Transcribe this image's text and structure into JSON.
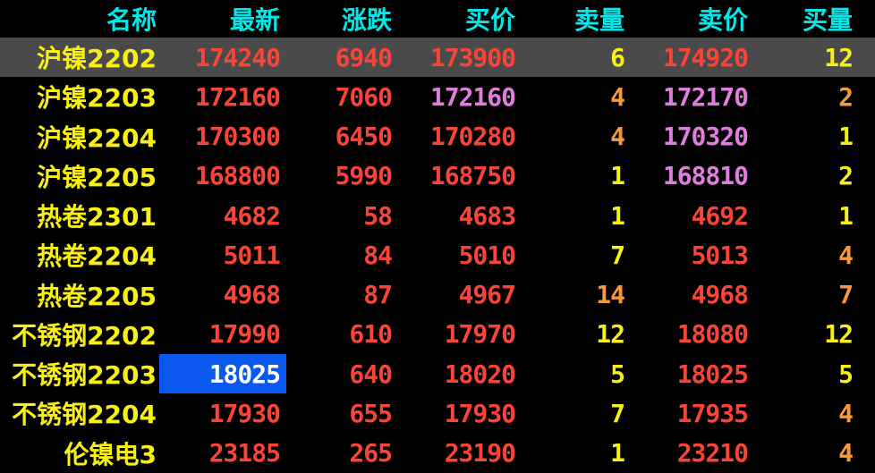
{
  "palette": {
    "cyan": "#00E9E9",
    "yellow": "#F8EF14",
    "orange": "#F79A3E",
    "red": "#F94438",
    "purple": "#DF7EDF",
    "white": "#FFFFFF",
    "background": "#000000",
    "selected_row_bg": "#4A4A4A",
    "highlight_cell_bg": "#0A58EE"
  },
  "table": {
    "columns": [
      {
        "key": "name",
        "label": "名称"
      },
      {
        "key": "last",
        "label": "最新"
      },
      {
        "key": "change",
        "label": "涨跌"
      },
      {
        "key": "bid",
        "label": "买价"
      },
      {
        "key": "ask_vol",
        "label": "卖量"
      },
      {
        "key": "ask",
        "label": "卖价"
      },
      {
        "key": "bid_vol",
        "label": "买量"
      }
    ],
    "rows": [
      {
        "name": "沪镍2202",
        "last": "174240",
        "change": "6940",
        "bid": "173900",
        "ask_vol": "6",
        "ask": "174920",
        "bid_vol": "12",
        "selected": true,
        "highlight_cell": "",
        "colors": {
          "name": "yellow",
          "last": "red",
          "change": "red",
          "bid": "red",
          "ask_vol": "yellow",
          "ask": "red",
          "bid_vol": "yellow"
        }
      },
      {
        "name": "沪镍2203",
        "last": "172160",
        "change": "7060",
        "bid": "172160",
        "ask_vol": "4",
        "ask": "172170",
        "bid_vol": "2",
        "selected": false,
        "highlight_cell": "",
        "colors": {
          "name": "yellow",
          "last": "red",
          "change": "red",
          "bid": "purple",
          "ask_vol": "orange",
          "ask": "purple",
          "bid_vol": "orange"
        }
      },
      {
        "name": "沪镍2204",
        "last": "170300",
        "change": "6450",
        "bid": "170280",
        "ask_vol": "4",
        "ask": "170320",
        "bid_vol": "1",
        "selected": false,
        "highlight_cell": "",
        "colors": {
          "name": "yellow",
          "last": "red",
          "change": "red",
          "bid": "red",
          "ask_vol": "orange",
          "ask": "purple",
          "bid_vol": "yellow"
        }
      },
      {
        "name": "沪镍2205",
        "last": "168800",
        "change": "5990",
        "bid": "168750",
        "ask_vol": "1",
        "ask": "168810",
        "bid_vol": "2",
        "selected": false,
        "highlight_cell": "",
        "colors": {
          "name": "yellow",
          "last": "red",
          "change": "red",
          "bid": "red",
          "ask_vol": "yellow",
          "ask": "purple",
          "bid_vol": "yellow"
        }
      },
      {
        "name": "热卷2301",
        "last": "4682",
        "change": "58",
        "bid": "4683",
        "ask_vol": "1",
        "ask": "4692",
        "bid_vol": "1",
        "selected": false,
        "highlight_cell": "",
        "colors": {
          "name": "yellow",
          "last": "red",
          "change": "red",
          "bid": "red",
          "ask_vol": "yellow",
          "ask": "red",
          "bid_vol": "yellow"
        }
      },
      {
        "name": "热卷2204",
        "last": "5011",
        "change": "84",
        "bid": "5010",
        "ask_vol": "7",
        "ask": "5013",
        "bid_vol": "4",
        "selected": false,
        "highlight_cell": "",
        "colors": {
          "name": "yellow",
          "last": "red",
          "change": "red",
          "bid": "red",
          "ask_vol": "yellow",
          "ask": "red",
          "bid_vol": "orange"
        }
      },
      {
        "name": "热卷2205",
        "last": "4968",
        "change": "87",
        "bid": "4967",
        "ask_vol": "14",
        "ask": "4968",
        "bid_vol": "7",
        "selected": false,
        "highlight_cell": "",
        "colors": {
          "name": "yellow",
          "last": "red",
          "change": "red",
          "bid": "red",
          "ask_vol": "orange",
          "ask": "red",
          "bid_vol": "orange"
        }
      },
      {
        "name": "不锈钢2202",
        "last": "17990",
        "change": "610",
        "bid": "17970",
        "ask_vol": "12",
        "ask": "18080",
        "bid_vol": "12",
        "selected": false,
        "highlight_cell": "",
        "colors": {
          "name": "yellow",
          "last": "red",
          "change": "red",
          "bid": "red",
          "ask_vol": "yellow",
          "ask": "red",
          "bid_vol": "yellow"
        }
      },
      {
        "name": "不锈钢2203",
        "last": "18025",
        "change": "640",
        "bid": "18020",
        "ask_vol": "5",
        "ask": "18025",
        "bid_vol": "5",
        "selected": false,
        "highlight_cell": "last",
        "colors": {
          "name": "yellow",
          "last": "white",
          "change": "red",
          "bid": "red",
          "ask_vol": "yellow",
          "ask": "red",
          "bid_vol": "yellow"
        }
      },
      {
        "name": "不锈钢2204",
        "last": "17930",
        "change": "655",
        "bid": "17930",
        "ask_vol": "7",
        "ask": "17935",
        "bid_vol": "4",
        "selected": false,
        "highlight_cell": "",
        "colors": {
          "name": "yellow",
          "last": "red",
          "change": "red",
          "bid": "red",
          "ask_vol": "yellow",
          "ask": "red",
          "bid_vol": "orange"
        }
      },
      {
        "name": "伦镍电3",
        "last": "23185",
        "change": "265",
        "bid": "23190",
        "ask_vol": "1",
        "ask": "23210",
        "bid_vol": "4",
        "selected": false,
        "highlight_cell": "",
        "colors": {
          "name": "yellow",
          "last": "red",
          "change": "red",
          "bid": "red",
          "ask_vol": "yellow",
          "ask": "red",
          "bid_vol": "orange"
        }
      }
    ]
  }
}
